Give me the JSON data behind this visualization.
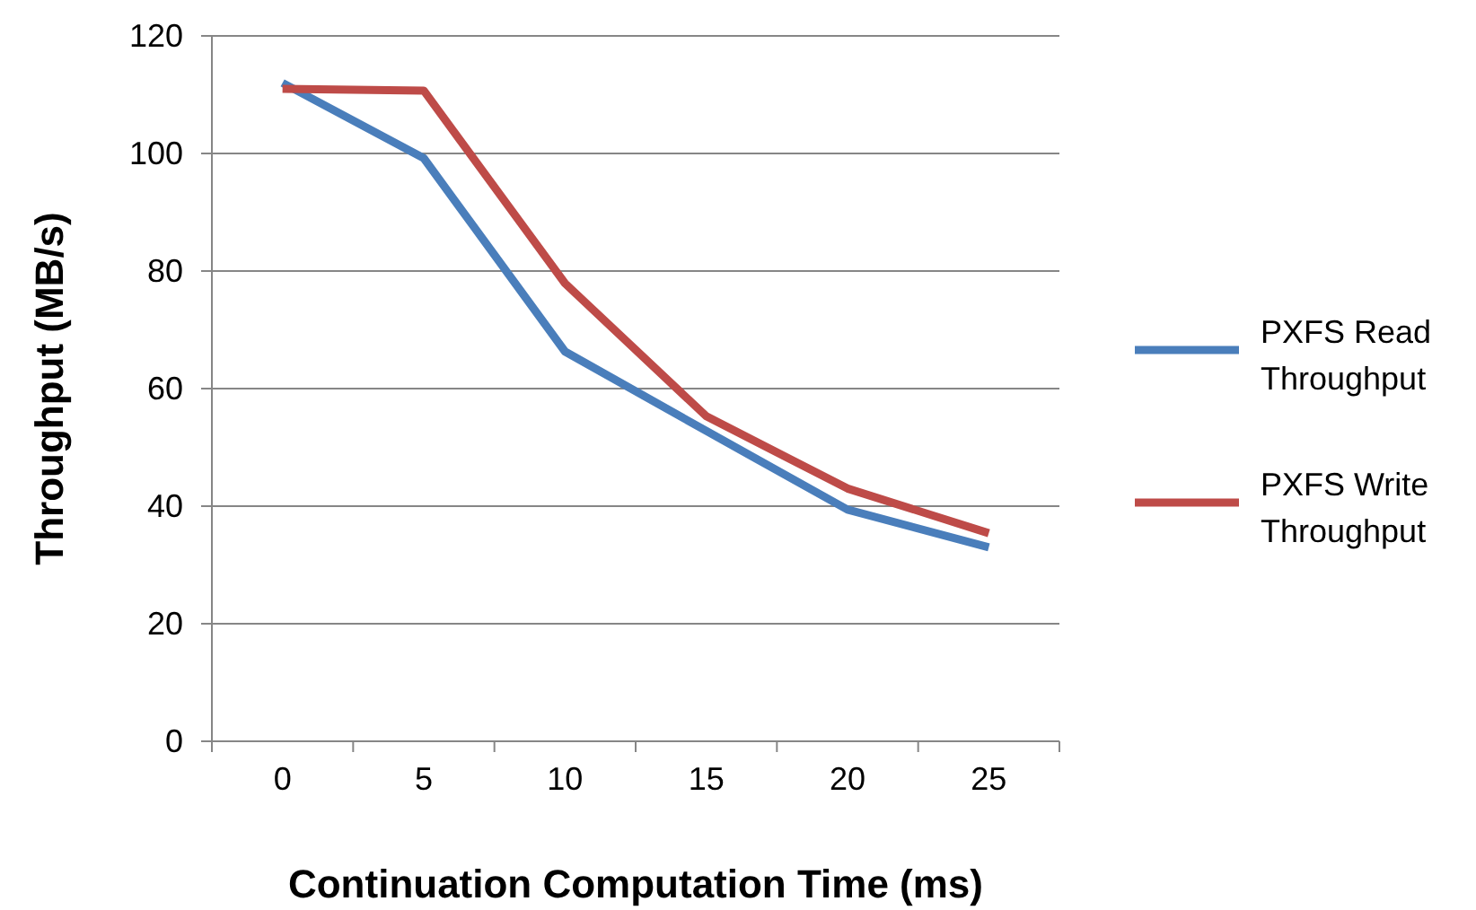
{
  "chart_data": {
    "type": "line",
    "xlabel": "Continuation Computation Time (ms)",
    "ylabel": "Throughput (MB/s)",
    "categories": [
      "0",
      "5",
      "10",
      "15",
      "20",
      "25"
    ],
    "series": [
      {
        "name": "PXFS Read Throughput",
        "color": "#4a7ebb",
        "values": [
          112,
          99.2,
          66.3,
          52.8,
          39.4,
          33
        ]
      },
      {
        "name": "PXFS Write Throughput",
        "color": "#be4b48",
        "values": [
          111,
          110.7,
          77.9,
          55.3,
          43,
          35.4
        ]
      }
    ],
    "ylim": [
      0,
      120
    ],
    "yticks": [
      0,
      20,
      40,
      60,
      80,
      100,
      120
    ],
    "grid": "y",
    "legend": "right",
    "marker": "none",
    "line_style": "solid"
  }
}
